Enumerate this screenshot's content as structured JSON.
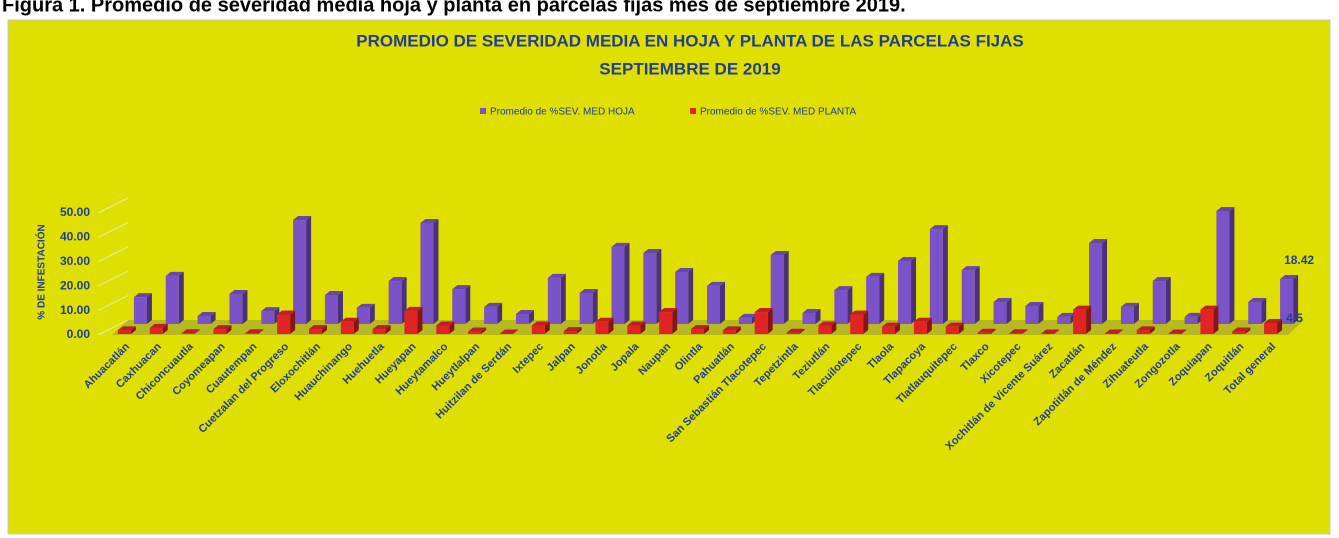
{
  "header": "Figura 1. Promedio de severidad media hoja y planta en parcelas fijas mes de septiembre 2019.",
  "chart_data": {
    "type": "bar3d",
    "title": "PROMEDIO DE SEVERIDAD MEDIA EN HOJA Y PLANTA DE LAS PARCELAS FIJAS",
    "subtitle": "SEPTIEMBRE DE 2019",
    "y_label": "% DE INFESTACIÓN",
    "categories": [
      "Ahuacatlán",
      "Caxhuacan",
      "Chiconcuautla",
      "Coyomeapan",
      "Cuautempan",
      "Cuetzalan del Progreso",
      "Eloxochitlán",
      "Huauchinango",
      "Huehuetla",
      "Hueyapan",
      "Hueytamalco",
      "Hueytlalpan",
      "Huitzilan de Serdán",
      "Ixtepec",
      "Jalpan",
      "Jonotla",
      "Jopala",
      "Naupan",
      "Olintla",
      "Pahuatlán",
      "San Sebastián Tlacotepec",
      "Tepetzintla",
      "Teziutlán",
      "Tlacuilotepec",
      "Tlaola",
      "Tlapacoya",
      "Tlatlauquitepec",
      "Tlaxco",
      "Xicotepec",
      "Xochitlán de Vicente Suárez",
      "Zacatlán",
      "Zapotitlán de Méndez",
      "Zihuateutla",
      "Zongozotla",
      "Zoquiapan",
      "Zoquitlán",
      "Total general"
    ],
    "series": [
      {
        "name": "Promedio de %SEV. MED HOJA",
        "color": "#7b52c8",
        "values": [
          11,
          19.7,
          3.3,
          12.3,
          5.3,
          42.6,
          11.9,
          6.6,
          17.6,
          41.4,
          14.3,
          7,
          4.1,
          18.9,
          12.7,
          31.6,
          29.1,
          21.3,
          15.6,
          2.5,
          28.3,
          4.5,
          13.9,
          19.3,
          25.8,
          38.9,
          22.1,
          9,
          7.4,
          2.9,
          33.2,
          7,
          17.6,
          2.9,
          46.3,
          9,
          18.42
        ],
        "value_labels": [
          null,
          null,
          null,
          null,
          null,
          null,
          null,
          null,
          null,
          null,
          null,
          null,
          null,
          null,
          null,
          null,
          null,
          null,
          null,
          null,
          null,
          null,
          null,
          null,
          null,
          null,
          null,
          null,
          null,
          null,
          null,
          null,
          null,
          null,
          null,
          null,
          "18.42"
        ]
      },
      {
        "name": "Promedio de %SEV. MED PLANTA",
        "color": "#e02424",
        "values": [
          1.5,
          2.5,
          0.3,
          2,
          0.3,
          8,
          2,
          5,
          2,
          9.5,
          3.5,
          1,
          0.2,
          3.5,
          1.2,
          5,
          3.5,
          9,
          2,
          1.5,
          9,
          0.5,
          3.5,
          8,
          3,
          5,
          3,
          0.5,
          0.3,
          0.2,
          10,
          0.2,
          1.5,
          0.2,
          10,
          1,
          4.5
        ],
        "value_labels": [
          null,
          null,
          null,
          null,
          null,
          null,
          null,
          null,
          null,
          null,
          null,
          null,
          null,
          null,
          null,
          null,
          null,
          null,
          null,
          null,
          null,
          null,
          null,
          null,
          null,
          null,
          null,
          null,
          null,
          null,
          null,
          null,
          null,
          null,
          null,
          null,
          "4.5"
        ]
      }
    ],
    "ylim": [
      0,
      50
    ],
    "yticks": [
      {
        "value": 0,
        "label": "0.00"
      },
      {
        "value": 10,
        "label": "10.00"
      },
      {
        "value": 20,
        "label": "20.00"
      },
      {
        "value": 30,
        "label": "30.00"
      },
      {
        "value": 40,
        "label": "40.00"
      },
      {
        "value": 50,
        "label": "50.00"
      }
    ],
    "grid": true
  }
}
